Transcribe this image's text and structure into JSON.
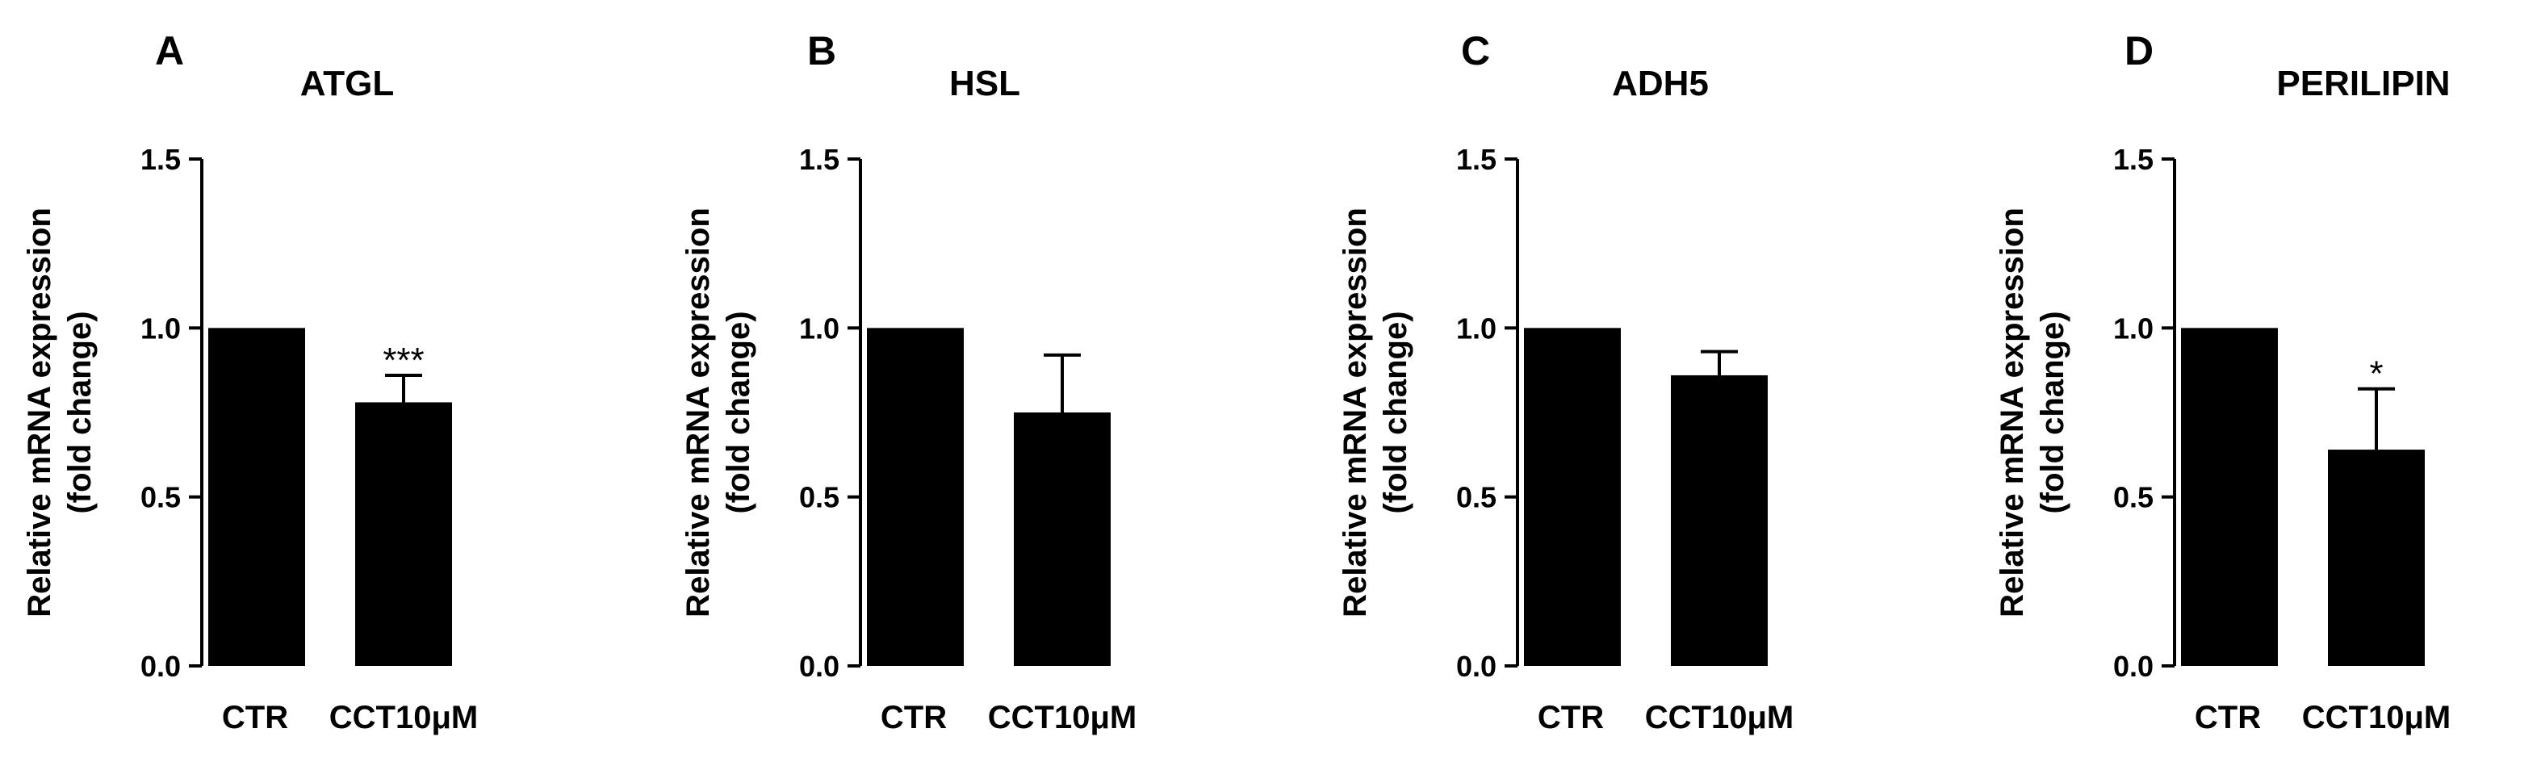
{
  "chart_data": [
    {
      "type": "bar",
      "panel": "A",
      "title": "ATGL",
      "ylabel": [
        "Relative mRNA expression",
        "(fold change)"
      ],
      "ylim": [
        0,
        1.5
      ],
      "yticks": [
        "0.0",
        "0.5",
        "1.0",
        "1.5"
      ],
      "categories": [
        "CTR",
        "CCT10μM"
      ],
      "values": [
        1.0,
        0.78
      ],
      "errors": [
        0,
        0.08
      ],
      "significance": [
        "",
        "***"
      ],
      "bar_color": "#000000"
    },
    {
      "type": "bar",
      "panel": "B",
      "title": "HSL",
      "ylabel": [
        "Relative mRNA expression",
        "(fold change)"
      ],
      "ylim": [
        0,
        1.5
      ],
      "yticks": [
        "0.0",
        "0.5",
        "1.0",
        "1.5"
      ],
      "categories": [
        "CTR",
        "CCT10μM"
      ],
      "values": [
        1.0,
        0.75
      ],
      "errors": [
        0,
        0.17
      ],
      "significance": [
        "",
        ""
      ],
      "bar_color": "#000000"
    },
    {
      "type": "bar",
      "panel": "C",
      "title": "ADH5",
      "ylabel": [
        "Relative mRNA expression",
        "(fold change)"
      ],
      "ylim": [
        0,
        1.5
      ],
      "yticks": [
        "0.0",
        "0.5",
        "1.0",
        "1.5"
      ],
      "categories": [
        "CTR",
        "CCT10μM"
      ],
      "values": [
        1.0,
        0.86
      ],
      "errors": [
        0,
        0.07
      ],
      "significance": [
        "",
        ""
      ],
      "bar_color": "#000000"
    },
    {
      "type": "bar",
      "panel": "D",
      "title": "PERILIPIN",
      "ylabel": [
        "Relative mRNA expression",
        "(fold change)"
      ],
      "ylim": [
        0,
        1.5
      ],
      "yticks": [
        "0.0",
        "0.5",
        "1.0",
        "1.5"
      ],
      "categories": [
        "CTR",
        "CCT10μM"
      ],
      "values": [
        1.0,
        0.64
      ],
      "errors": [
        0,
        0.18
      ],
      "significance": [
        "",
        "*"
      ],
      "bar_color": "#000000"
    }
  ]
}
